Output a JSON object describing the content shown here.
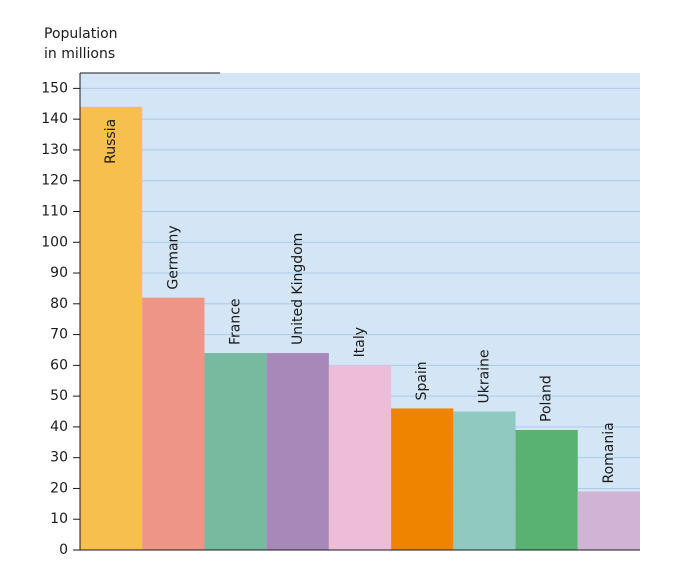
{
  "chart_data": {
    "type": "bar",
    "y_label": [
      "Population",
      "in millions"
    ],
    "categories": [
      "Russia",
      "Germany",
      "France",
      "United Kingdom",
      "Italy",
      "Spain",
      "Ukraine",
      "Poland",
      "Romania"
    ],
    "values": [
      144,
      82,
      64,
      64,
      60,
      46,
      45,
      39,
      19
    ],
    "colors": [
      "#f6bf4e",
      "#ee9585",
      "#76bba0",
      "#a888b9",
      "#ecbcd8",
      "#ee8400",
      "#8fc9c0",
      "#5ab272",
      "#d1b4d5"
    ],
    "ylim": [
      0,
      155
    ],
    "yticks": [
      0,
      10,
      20,
      30,
      40,
      50,
      60,
      70,
      80,
      90,
      100,
      110,
      120,
      130,
      140,
      150
    ],
    "grid": true,
    "background": "#d4e5f5"
  }
}
